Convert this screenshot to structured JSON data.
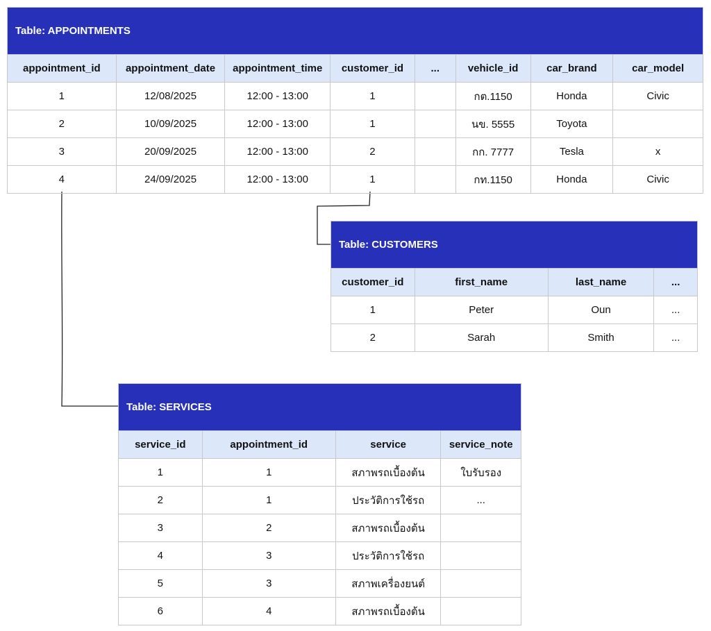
{
  "appointments": {
    "title": "Table: APPOINTMENTS",
    "columns": [
      "appointment_id",
      "appointment_date",
      "appointment_time",
      "customer_id",
      "...",
      "vehicle_id",
      "car_brand",
      "car_model"
    ],
    "rows": [
      [
        "1",
        "12/08/2025",
        "12:00 - 13:00",
        "1",
        "",
        "กต.1150",
        "Honda",
        "Civic"
      ],
      [
        "2",
        "10/09/2025",
        "12:00 - 13:00",
        "1",
        "",
        "นข. 5555",
        "Toyota",
        ""
      ],
      [
        "3",
        "20/09/2025",
        "12:00 - 13:00",
        "2",
        "",
        "กก. 7777",
        "Tesla",
        "x"
      ],
      [
        "4",
        "24/09/2025",
        "12:00 - 13:00",
        "1",
        "",
        "กท.1150",
        "Honda",
        "Civic"
      ]
    ]
  },
  "customers": {
    "title": "Table: CUSTOMERS",
    "columns": [
      "customer_id",
      "first_name",
      "last_name",
      "..."
    ],
    "rows": [
      [
        "1",
        "Peter",
        "Oun",
        "..."
      ],
      [
        "2",
        "Sarah",
        "Smith",
        "..."
      ]
    ]
  },
  "services": {
    "title": "Table: SERVICES",
    "columns": [
      "service_id",
      "appointment_id",
      "service",
      "service_note"
    ],
    "rows": [
      [
        "1",
        "1",
        "สภาพรถเบื้องต้น",
        "ใบรับรอง"
      ],
      [
        "2",
        "1",
        "ประวัติการใช้รถ",
        "..."
      ],
      [
        "3",
        "2",
        "สภาพรถเบื้องต้น",
        ""
      ],
      [
        "4",
        "3",
        "ประวัติการใช้รถ",
        ""
      ],
      [
        "5",
        "3",
        "สภาพเครื่องยนต์",
        ""
      ],
      [
        "6",
        "4",
        "สภาพรถเบื้องต้น",
        ""
      ]
    ]
  },
  "colors": {
    "title_bg": "#2630b8",
    "header_bg": "#dce8fa"
  }
}
